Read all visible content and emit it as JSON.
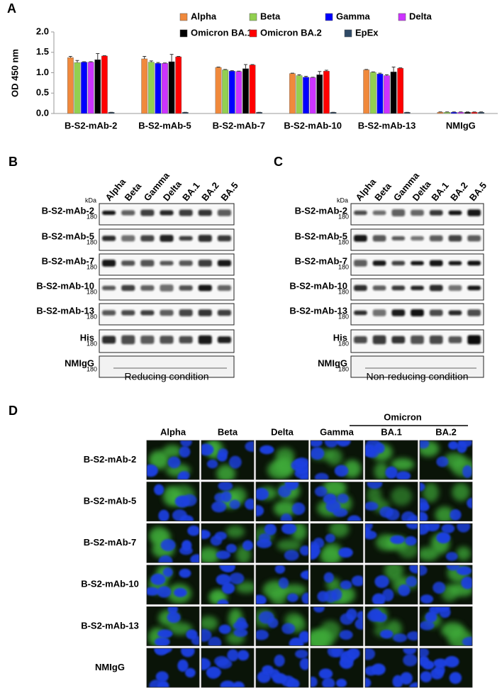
{
  "chart_data": {
    "type": "bar",
    "panel": "A",
    "ylabel": "OD 450 nm",
    "categories": [
      "B-S2-mAb-2",
      "B-S2-mAb-5",
      "B-S2-mAb-7",
      "B-S2-mAb-10",
      "B-S2-mAb-13",
      "NMIgG"
    ],
    "series": [
      {
        "name": "Alpha",
        "color": "#f0893c",
        "values": [
          1.37,
          1.34,
          1.13,
          0.98,
          1.07,
          0.03
        ],
        "errors": [
          0.03,
          0.06,
          0.01,
          0.01,
          0.01,
          0.01
        ]
      },
      {
        "name": "Beta",
        "color": "#92d050",
        "values": [
          1.25,
          1.26,
          1.07,
          0.93,
          1.01,
          0.03
        ],
        "errors": [
          0.05,
          0.03,
          0.01,
          0.02,
          0.01,
          0.01
        ]
      },
      {
        "name": "Gamma",
        "color": "#0000ff",
        "values": [
          1.26,
          1.23,
          1.04,
          0.89,
          0.97,
          0.03
        ],
        "errors": [
          0.01,
          0.02,
          0.01,
          0.02,
          0.02,
          0.01
        ]
      },
      {
        "name": "Delta",
        "color": "#cc33ff",
        "values": [
          1.26,
          1.23,
          1.03,
          0.88,
          0.93,
          0.03
        ],
        "errors": [
          0.01,
          0.01,
          0.01,
          0.01,
          0.02,
          0.01
        ]
      },
      {
        "name": "Omicron BA.1",
        "color": "#000000",
        "values": [
          1.32,
          1.27,
          1.1,
          0.95,
          1.02,
          0.03
        ],
        "errors": [
          0.15,
          0.18,
          0.1,
          0.08,
          0.12,
          0.01
        ]
      },
      {
        "name": "Omicron BA.2",
        "color": "#ff0000",
        "values": [
          1.41,
          1.39,
          1.19,
          1.04,
          1.11,
          0.03
        ],
        "errors": [
          0.01,
          0.01,
          0.01,
          0.02,
          0.01,
          0.01
        ]
      },
      {
        "name": "EpEx",
        "color": "#2f4a66",
        "values": [
          0.03,
          0.03,
          0.03,
          0.03,
          0.03,
          0.03
        ],
        "errors": [
          0.0,
          0.0,
          0.0,
          0.0,
          0.0,
          0.01
        ]
      }
    ],
    "ylim": [
      0,
      2
    ],
    "yticks": [
      {
        "value": 0,
        "label": "0.0"
      },
      {
        "value": 0.5,
        "label": "0.5"
      },
      {
        "value": 1,
        "label": "1.0"
      },
      {
        "value": 1.5,
        "label": "1.5"
      },
      {
        "value": 2,
        "label": "2.0"
      }
    ]
  },
  "panel_b": {
    "label": "B",
    "unit": "kDa",
    "columns": [
      "Alpha",
      "Beta",
      "Gamma",
      "Delta",
      "BA.1",
      "BA.2",
      "BA.5"
    ],
    "rows": [
      {
        "label": "B-S2-mAb-2",
        "marker": 180
      },
      {
        "label": "B-S2-mAb-5",
        "marker": 180
      },
      {
        "label": "B-S2-mAb-7",
        "marker": 180
      },
      {
        "label": "B-S2-mAb-10",
        "marker": 180
      },
      {
        "label": "B-S2-mAb-13",
        "marker": 180
      },
      {
        "label": "His",
        "marker": 180
      },
      {
        "label": "NMIgG",
        "marker": 180
      }
    ],
    "caption": "Reducing condition"
  },
  "panel_c": {
    "label": "C",
    "unit": "kDa",
    "columns": [
      "Alpha",
      "Beta",
      "Gamma",
      "Delta",
      "BA.1",
      "BA.2",
      "BA.5"
    ],
    "rows": [
      {
        "label": "B-S2-mAb-2",
        "marker": 180
      },
      {
        "label": "B-S2-mAb-5",
        "marker": 180
      },
      {
        "label": "B-S2-mAb-7",
        "marker": 180
      },
      {
        "label": "B-S2-mAb-10",
        "marker": 180
      },
      {
        "label": "B-S2-mAb-13",
        "marker": 180
      },
      {
        "label": "His",
        "marker": 180
      },
      {
        "label": "NMIgG",
        "marker": 180
      }
    ],
    "caption": "Non-reducing condition"
  },
  "panel_d": {
    "label": "D",
    "group": "Omicron",
    "columns": [
      "Alpha",
      "Beta",
      "Delta",
      "Gamma",
      "BA.1",
      "BA.2"
    ],
    "rows": [
      "B-S2-mAb-2",
      "B-S2-mAb-5",
      "B-S2-mAb-7",
      "B-S2-mAb-10",
      "B-S2-mAb-13",
      "NMIgG"
    ]
  }
}
